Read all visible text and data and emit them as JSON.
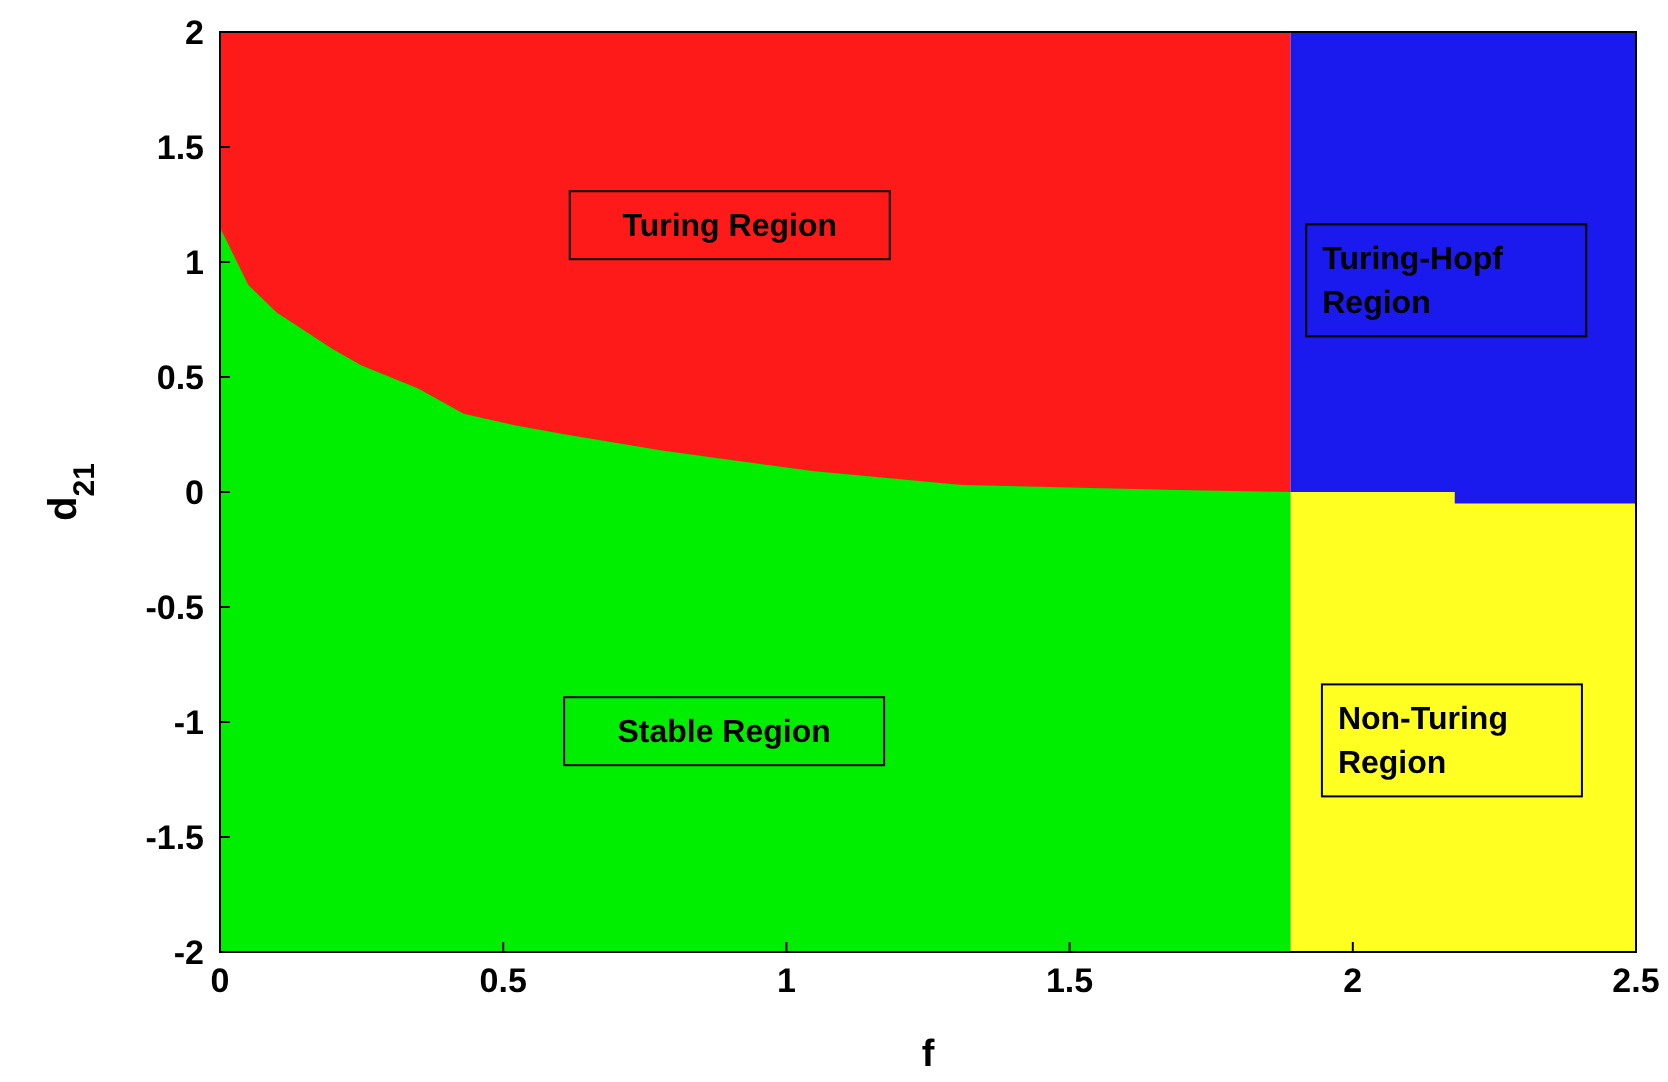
{
  "chart_data": {
    "type": "area",
    "xlabel": "f",
    "ylabel": "d$_{21}$",
    "xlim": [
      0,
      2.5
    ],
    "ylim": [
      -2,
      2
    ],
    "xticks": [
      0,
      0.5,
      1,
      1.5,
      2,
      2.5
    ],
    "yticks": [
      -2,
      -1.5,
      -1,
      -0.5,
      0,
      0.5,
      1,
      1.5,
      2
    ],
    "bands": [
      {
        "axis": "x",
        "from": 0,
        "to": 1.89,
        "color": "#ff1a1a"
      },
      {
        "axis": "x",
        "from": 1.89,
        "to": 2.5,
        "color": "#1a1aee"
      }
    ],
    "series": [
      {
        "color": "#00ee00",
        "x": [
          0,
          0.05,
          0.1,
          0.15,
          0.2,
          0.25,
          0.3,
          0.35,
          0.43,
          0.52,
          0.61,
          0.78,
          0.87,
          1.05,
          1.31,
          1.67,
          1.89
        ],
        "values": [
          1.15,
          0.9,
          0.78,
          0.7,
          0.62,
          0.55,
          0.5,
          0.45,
          0.34,
          0.29,
          0.25,
          0.18,
          0.15,
          0.09,
          0.03,
          0.01,
          0
        ]
      },
      {
        "color": "#00ee00",
        "x": [
          0,
          1.89
        ],
        "values": [
          -2,
          -2
        ]
      },
      {
        "color": "#ffff22",
        "x": [
          1.89,
          2.5
        ],
        "values": [
          -2,
          -2
        ]
      },
      {
        "color": "#1a1aee",
        "x": [
          2.18,
          2.5
        ],
        "values": [
          -0.05,
          -0.05
        ]
      }
    ],
    "annotations": [
      "Turing Region",
      "Turing-Hopf Region",
      "Stable Region",
      "Non-Turing Region"
    ]
  }
}
